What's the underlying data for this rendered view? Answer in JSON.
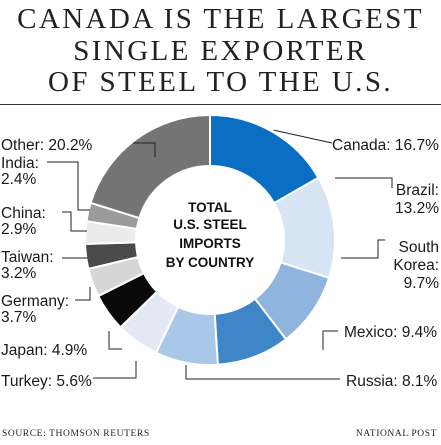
{
  "title_lines": [
    "CANADA IS THE LARGEST",
    "SINGLE EXPORTER",
    "OF STEEL TO THE U.S."
  ],
  "center_label": [
    "TOTAL",
    "U.S. STEEL",
    "IMPORTS",
    "BY COUNTRY"
  ],
  "source": "SOURCE: THOMSON REUTERS",
  "credit": "NATIONAL POST",
  "chart_data": {
    "type": "pie",
    "style": "donut",
    "unit": "%",
    "slices": [
      {
        "name": "Canada",
        "value": 16.7,
        "label_lines": [
          "Canada: 16.7%"
        ],
        "color": "#0a6fc2"
      },
      {
        "name": "Brazil",
        "value": 13.2,
        "label_lines": [
          "Brazil:",
          "13.2%"
        ],
        "color": "#d6e4f4"
      },
      {
        "name": "South Korea",
        "value": 9.7,
        "label_lines": [
          "South",
          "Korea:",
          "9.7%"
        ],
        "color": "#8fb4dd"
      },
      {
        "name": "Mexico",
        "value": 9.4,
        "label_lines": [
          "Mexico: 9.4%"
        ],
        "color": "#3f86c9"
      },
      {
        "name": "Russia",
        "value": 8.1,
        "label_lines": [
          "Russia: 8.1%"
        ],
        "color": "#a9c7e8"
      },
      {
        "name": "Turkey",
        "value": 5.6,
        "label_lines": [
          "Turkey: 5.6%"
        ],
        "color": "#e3eaf3"
      },
      {
        "name": "Japan",
        "value": 4.9,
        "label_lines": [
          "Japan: 4.9%"
        ],
        "color": "#0a0a0a"
      },
      {
        "name": "Germany",
        "value": 3.7,
        "label_lines": [
          "Germany:",
          "3.7%"
        ],
        "color": "#d6d6d6"
      },
      {
        "name": "Taiwan",
        "value": 3.2,
        "label_lines": [
          "Taiwan:",
          "3.2%"
        ],
        "color": "#4a4a4a"
      },
      {
        "name": "China",
        "value": 2.9,
        "label_lines": [
          "China:",
          "2.9%"
        ],
        "color": "#ebebeb"
      },
      {
        "name": "India",
        "value": 2.4,
        "label_lines": [
          "India:",
          "2.4%"
        ],
        "color": "#9a9a9a"
      },
      {
        "name": "Other",
        "value": 20.2,
        "label_lines": [
          "Other: 20.2%"
        ],
        "color": "#747474"
      }
    ]
  }
}
